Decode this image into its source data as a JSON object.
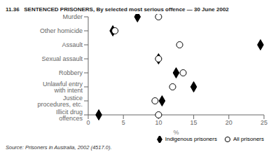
{
  "chart_data": {
    "type": "dot",
    "title": "11.36   SENTENCED PRISONERS, By selected most serious offence — 30 June 2002",
    "categories": [
      "Murder",
      "Other homicide",
      "Assault",
      "Sexual assault",
      "Robbery",
      "Unlawful entry with intent",
      "Justice procedures, etc.",
      "Illicit drug offences"
    ],
    "series": [
      {
        "name": "Indigenous prisoners",
        "color": "#000000",
        "marker": "diamond",
        "values": [
          7.0,
          3.5,
          24.5,
          10.0,
          12.5,
          15.0,
          10.5,
          1.5
        ]
      },
      {
        "name": "All prisoners",
        "color": "#000000",
        "marker": "open_circle",
        "values": [
          10.0,
          3.8,
          13.0,
          10.0,
          13.5,
          12.0,
          9.5,
          10.0
        ]
      }
    ],
    "xlabel": "%",
    "xlim": [
      0,
      25
    ],
    "xticks": [
      0,
      5,
      10,
      15,
      20,
      25
    ],
    "orientation": "horizontal",
    "legend": "lower right",
    "grid": false,
    "annotations": [
      "Source: Prisoners in Australia, 2002 (4517.0)."
    ]
  }
}
